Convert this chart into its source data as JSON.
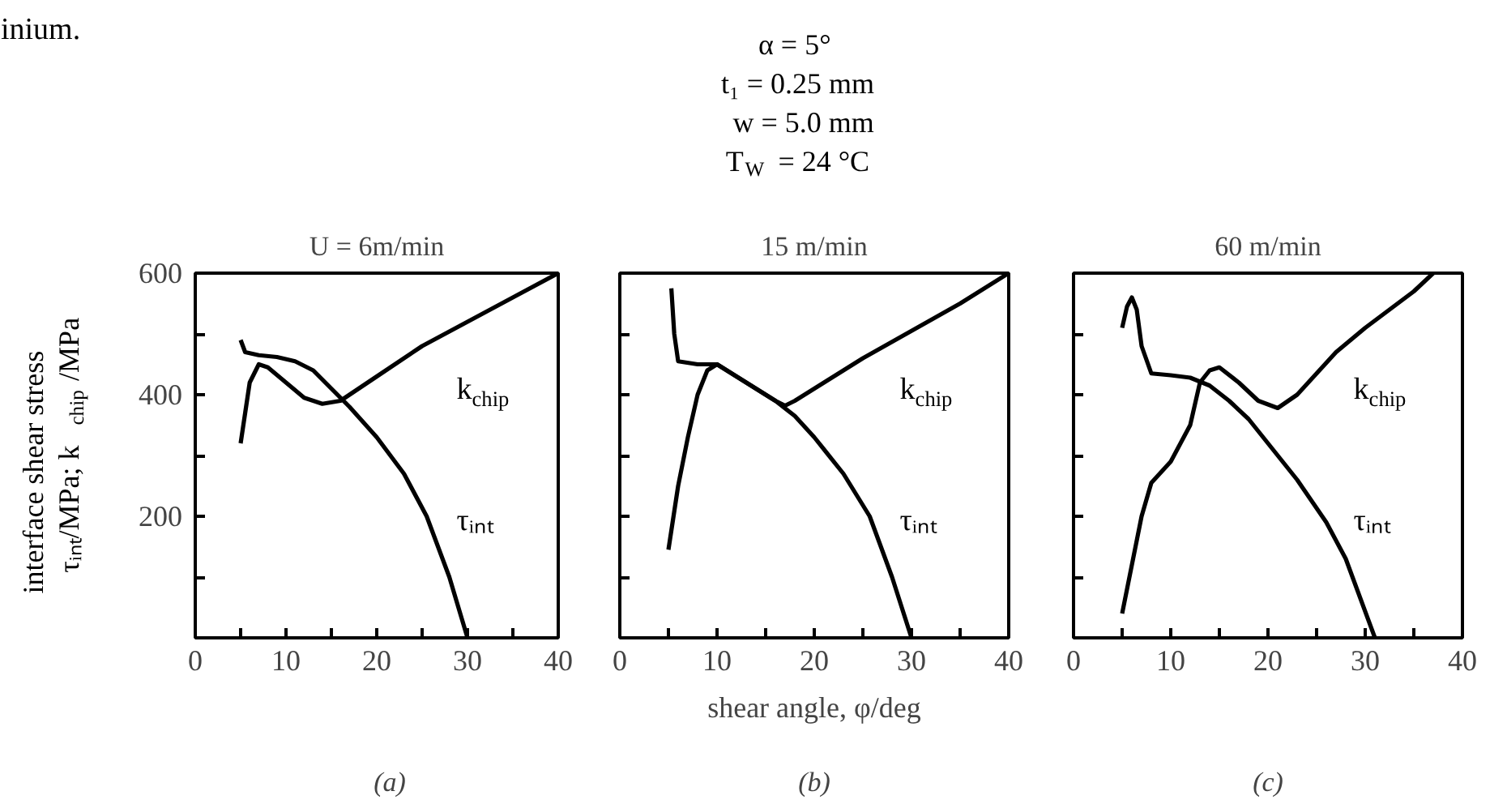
{
  "chart_data": [
    {
      "type": "line",
      "title": "U = 6m/min",
      "ylabel": "interface shear stress\nτᵢₙₜ/MPa; k$_{chip}$/MPa",
      "xlim": [
        0,
        40
      ],
      "ylim": [
        0,
        600
      ],
      "xticks": [
        0,
        {
          "value": 5,
          "label": null
        },
        10,
        {
          "value": 15,
          "label": null
        },
        20,
        {
          "value": 25,
          "label": null
        },
        30,
        {
          "value": 35,
          "label": null
        },
        40
      ],
      "yticks": [
        {
          "value": 100,
          "label": null
        },
        200,
        {
          "value": 300,
          "label": null
        },
        400,
        {
          "value": 500,
          "label": null
        },
        600
      ],
      "series": [
        {
          "name": "k$_{chip}$",
          "color": "#000000",
          "x": [
            5,
            5.5,
            6,
            7,
            8,
            10,
            12,
            14,
            16,
            20,
            25,
            30,
            35,
            40
          ],
          "values": [
            320,
            370,
            420,
            450,
            445,
            420,
            395,
            385,
            390,
            430,
            480,
            520,
            560,
            600
          ]
        },
        {
          "name": "τᵢₙₜ",
          "color": "#000000",
          "x": [
            5,
            5.5,
            7,
            9,
            11,
            13,
            15,
            17,
            20,
            23,
            25.5,
            28,
            30
          ],
          "values": [
            490,
            470,
            465,
            462,
            455,
            440,
            410,
            380,
            330,
            270,
            200,
            100,
            0
          ]
        }
      ],
      "annotations": [
        "inium.",
        "(a)"
      ]
    },
    {
      "type": "line",
      "title": "15 m/min",
      "xlabel": "shear angle, φ/deg",
      "xlim": [
        0,
        40
      ],
      "ylim": [
        0,
        600
      ],
      "tick_labels": "x",
      "xticks": [
        0,
        {
          "value": 5,
          "label": null
        },
        10,
        {
          "value": 15,
          "label": null
        },
        20,
        {
          "value": 25,
          "label": null
        },
        30,
        {
          "value": 35,
          "label": null
        },
        40
      ],
      "yticks": [
        {
          "value": 100,
          "label": null
        },
        {
          "value": 200,
          "label": null
        },
        {
          "value": 300,
          "label": null
        },
        {
          "value": 400,
          "label": null
        },
        {
          "value": 500,
          "label": null
        },
        {
          "value": 600,
          "label": null
        }
      ],
      "series": [
        {
          "name": "k$_{chip}$",
          "color": "#000000",
          "x": [
            5,
            6,
            7,
            8,
            9,
            10,
            12,
            14,
            16,
            17,
            18,
            20,
            25,
            30,
            35,
            40
          ],
          "values": [
            145,
            250,
            330,
            400,
            440,
            450,
            430,
            410,
            390,
            382,
            390,
            410,
            460,
            505,
            550,
            600
          ]
        },
        {
          "name": "τᵢₙₜ",
          "color": "#000000",
          "x": [
            5.3,
            5.6,
            6,
            8,
            10,
            12,
            14,
            16,
            18,
            20,
            23,
            25.7,
            28,
            30
          ],
          "values": [
            575,
            500,
            455,
            450,
            450,
            430,
            410,
            390,
            365,
            330,
            270,
            200,
            100,
            0
          ]
        }
      ],
      "annotations": [
        "α = 5°",
        "t₁ = 0.25 mm",
        "w = 5.0 mm",
        "T$_{W}$ = 24 °C",
        "(b)"
      ]
    },
    {
      "type": "line",
      "title": "60 m/min",
      "xlim": [
        0,
        40
      ],
      "ylim": [
        0,
        600
      ],
      "tick_labels": "x",
      "xticks": [
        0,
        {
          "value": 5,
          "label": null
        },
        10,
        {
          "value": 15,
          "label": null
        },
        20,
        {
          "value": 25,
          "label": null
        },
        30,
        {
          "value": 35,
          "label": null
        },
        40
      ],
      "yticks": [
        {
          "value": 100,
          "label": null
        },
        {
          "value": 200,
          "label": null
        },
        {
          "value": 300,
          "label": null
        },
        {
          "value": 400,
          "label": null
        },
        {
          "value": 500,
          "label": null
        },
        {
          "value": 600,
          "label": null
        }
      ],
      "series": [
        {
          "name": "k$_{chip}$",
          "color": "#000000",
          "x": [
            5,
            6,
            7,
            8,
            10,
            12,
            13,
            14,
            15,
            17,
            19,
            21,
            23,
            27,
            30,
            35,
            37
          ],
          "values": [
            40,
            120,
            200,
            255,
            290,
            350,
            420,
            440,
            445,
            420,
            390,
            378,
            400,
            470,
            510,
            570,
            600
          ]
        },
        {
          "name": "τᵢₙₜ",
          "color": "#000000",
          "x": [
            5,
            5.5,
            6,
            6.5,
            7,
            8,
            10,
            12,
            14,
            16,
            18,
            20,
            23,
            26,
            28,
            31
          ],
          "values": [
            510,
            545,
            560,
            540,
            480,
            435,
            432,
            428,
            415,
            390,
            360,
            320,
            260,
            190,
            130,
            0
          ]
        }
      ],
      "annotations": [
        "(c)"
      ]
    }
  ]
}
